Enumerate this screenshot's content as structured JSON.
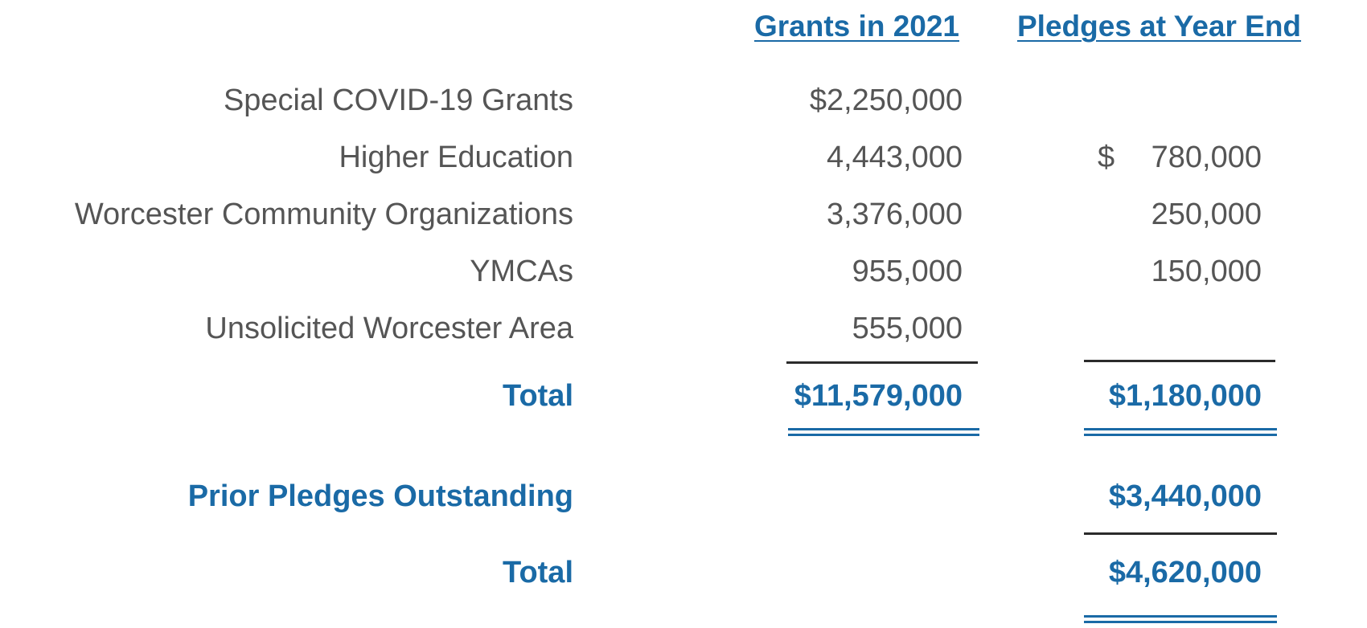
{
  "headers": {
    "grants": "Grants in 2021",
    "pledges": "Pledges at Year End"
  },
  "rows": [
    {
      "label": "Special COVID-19 Grants",
      "grants": "$2,250,000",
      "pledges": ""
    },
    {
      "label": "Higher Education",
      "grants": "4,443,000",
      "pledges_symbol": "$",
      "pledges": "780,000"
    },
    {
      "label": "Worcester Community Organizations",
      "grants": "3,376,000",
      "pledges": "250,000"
    },
    {
      "label": "YMCAs",
      "grants": "955,000",
      "pledges": "150,000"
    },
    {
      "label": "Unsolicited Worcester Area",
      "grants": "555,000",
      "pledges": ""
    }
  ],
  "total": {
    "label": "Total",
    "grants": "$11,579,000",
    "pledges": "$1,180,000"
  },
  "prior_pledges": {
    "label": "Prior Pledges Outstanding",
    "pledges": "$3,440,000"
  },
  "grand_total": {
    "label": "Total",
    "pledges": "$4,620,000"
  },
  "colors": {
    "accent": "#1a6aa6",
    "text": "#555555",
    "rule": "#2b2b2b"
  }
}
